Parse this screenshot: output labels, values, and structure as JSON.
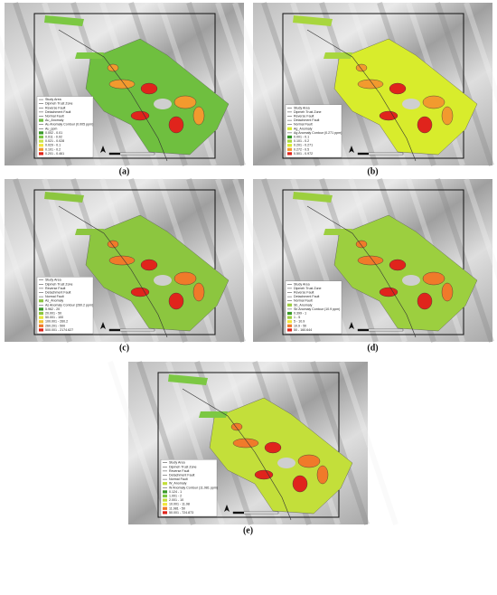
{
  "legend_common": [
    "Study Area",
    "Dipmeh Trust Zone",
    "Reverse Fault",
    "Detachment Fault",
    "Normal Fault"
  ],
  "panels": [
    {
      "label": "(a)",
      "legend_title": "Au_Anomaly",
      "contour": "Au Anomaly Contour (0.005 ppm)",
      "unit": "Au_ppm",
      "base": "#6fbf3f",
      "classes": [
        {
          "label": "0.002 - 0.01",
          "color": "#3a9a2a"
        },
        {
          "label": "0.011 - 0.02",
          "color": "#7cc843"
        },
        {
          "label": "0.021 - 0.028",
          "color": "#c9e34a"
        },
        {
          "label": "0.029 - 0.1",
          "color": "#f3e53a"
        },
        {
          "label": "0.101 - 0.2",
          "color": "#f29a2e"
        },
        {
          "label": "0.201 - 0.461",
          "color": "#e0241c"
        }
      ]
    },
    {
      "label": "(b)",
      "legend_title": "Ag_Anomaly",
      "contour": "Ag Anomaly Contour (0.271 ppm)",
      "base": "#d8ec2c",
      "classes": [
        {
          "label": "0.001 - 0.1",
          "color": "#3a9a2a"
        },
        {
          "label": "0.101 - 0.2",
          "color": "#a8d63e"
        },
        {
          "label": "0.201 - 0.271",
          "color": "#d8ec2c"
        },
        {
          "label": "0.272 - 0.5",
          "color": "#f29a2e"
        },
        {
          "label": "0.501 - 0.972",
          "color": "#e0241c"
        }
      ]
    },
    {
      "label": "(c)",
      "legend_title": "As_Anomaly",
      "contour": "As Anomaly Contour (260.2 ppm)",
      "base": "#8cc63f",
      "classes": [
        {
          "label": "5.962 - 20",
          "color": "#3a9a2a"
        },
        {
          "label": "20.001 - 50",
          "color": "#8cc63f"
        },
        {
          "label": "50.001 - 100",
          "color": "#e6e53a"
        },
        {
          "label": "100.001 - 260.2",
          "color": "#f3c233"
        },
        {
          "label": "260.201 - 500",
          "color": "#f07a2a"
        },
        {
          "label": "500.001 - 2174.627",
          "color": "#e0241c"
        }
      ]
    },
    {
      "label": "(d)",
      "legend_title": "Sb_Anomaly",
      "contour": "Sb Anomaly Contour (10.9 ppm)",
      "base": "#9ccf3f",
      "classes": [
        {
          "label": "0.399 - 1",
          "color": "#3a9a2a"
        },
        {
          "label": "1 - 5",
          "color": "#9ccf3f"
        },
        {
          "label": "5 - 10.9",
          "color": "#f3e53a"
        },
        {
          "label": "10.9 - 50",
          "color": "#f07a2a"
        },
        {
          "label": "50 - 160.644",
          "color": "#e0241c"
        }
      ]
    },
    {
      "label": "(e)",
      "legend_title": "W_Anomaly",
      "contour": "W Anomaly Contour (11.981 ppm)",
      "base": "#c3df3a",
      "classes": [
        {
          "label": "0.124 - 1",
          "color": "#3a9a2a"
        },
        {
          "label": "1.001 - 2",
          "color": "#7cc843"
        },
        {
          "label": "2.001 - 10",
          "color": "#c3df3a"
        },
        {
          "label": "10.001 - 11.98",
          "color": "#f3e53a"
        },
        {
          "label": "11.981 - 50",
          "color": "#f07a2a"
        },
        {
          "label": "50.001 - 724.873",
          "color": "#e0241c"
        }
      ]
    }
  ]
}
